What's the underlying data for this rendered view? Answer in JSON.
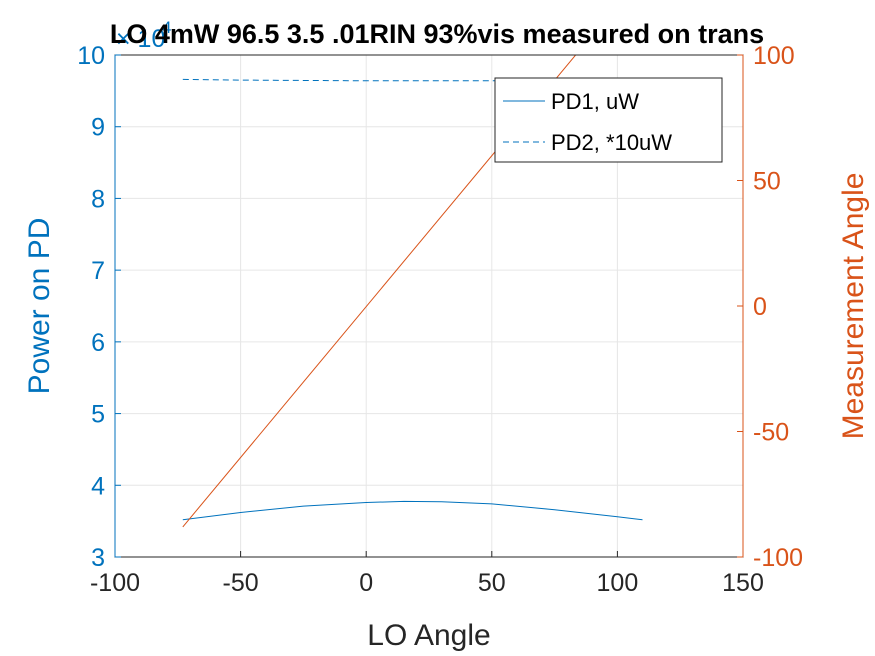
{
  "chart_data": {
    "type": "line",
    "title": "LO 4mW 96.5 3.5 .01RIN 93%vis measured on trans",
    "xlabel": "LO Angle",
    "xlim": [
      -100,
      150
    ],
    "xticks": [
      -100,
      -50,
      0,
      50,
      100,
      150
    ],
    "xtick_labels": [
      "-100",
      "-50",
      "0",
      "50",
      "100",
      "150"
    ],
    "y_left": {
      "label": "Power on PD",
      "lim": [
        3,
        10
      ],
      "ticks": [
        3,
        4,
        5,
        6,
        7,
        8,
        9,
        10
      ],
      "tick_labels": [
        "3",
        "4",
        "5",
        "6",
        "7",
        "8",
        "9",
        "10"
      ],
      "exponent_label": "× 10",
      "exponent": "4",
      "color": "#0072BD"
    },
    "y_right": {
      "label": "Measurement Angle",
      "lim": [
        -100,
        100
      ],
      "ticks": [
        -100,
        -50,
        0,
        50,
        100
      ],
      "tick_labels": [
        "-100",
        "-50",
        "0",
        "50",
        "100"
      ],
      "color": "#D95319"
    },
    "grid": true,
    "legend": "top-right",
    "series": [
      {
        "name": "PD1, uW",
        "axis": "left",
        "color": "#0072BD",
        "style": "solid",
        "x": [
          -73,
          -50,
          -25,
          0,
          15,
          30,
          50,
          75,
          100,
          110
        ],
        "y": [
          3.52,
          3.62,
          3.71,
          3.76,
          3.775,
          3.77,
          3.74,
          3.66,
          3.56,
          3.52
        ]
      },
      {
        "name": "PD2, *10uW",
        "axis": "left",
        "color": "#0072BD",
        "style": "dashed",
        "x": [
          -73,
          -50,
          0,
          50,
          77
        ],
        "y": [
          9.66,
          9.65,
          9.64,
          9.64,
          9.64
        ]
      },
      {
        "name": "",
        "axis": "right",
        "color": "#D95319",
        "style": "solid",
        "x": [
          -73,
          110
        ],
        "y": [
          -88,
          132
        ]
      }
    ]
  }
}
